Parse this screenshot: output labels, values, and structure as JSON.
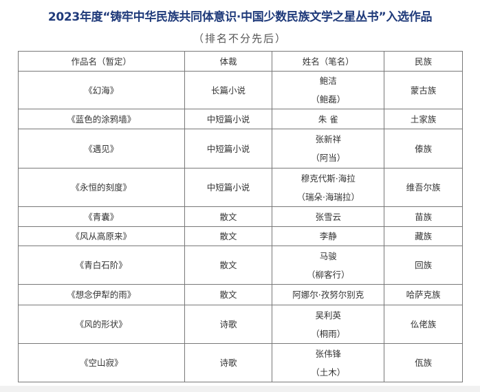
{
  "title": "2023年度“铸牢中华民族共同体意识·中国少数民族文学之星丛书”入选作品",
  "subtitle": "（排名不分先后）",
  "table": {
    "headers": [
      "作品名（暂定）",
      "体裁",
      "姓名（笔名）",
      "民族"
    ],
    "rows": [
      {
        "work": "《幻海》",
        "genre": "长篇小说",
        "name": "鲍洁",
        "pen": "（鲍磊）",
        "ethnicity": "蒙古族"
      },
      {
        "work": "《蓝色的涂鸦墙》",
        "genre": "中短篇小说",
        "name": "朱 雀",
        "pen": "",
        "ethnicity": "土家族"
      },
      {
        "work": "《遇见》",
        "genre": "中短篇小说",
        "name": "张新祥",
        "pen": "（阿当）",
        "ethnicity": "傣族"
      },
      {
        "work": "《永恒的刻度》",
        "genre": "中短篇小说",
        "name": "穆克代斯·海拉",
        "pen": "（瑞朵·海瑞拉）",
        "ethnicity": "维吾尔族"
      },
      {
        "work": "《青囊》",
        "genre": "散文",
        "name": "张雪云",
        "pen": "",
        "ethnicity": "苗族"
      },
      {
        "work": "《风从高原来》",
        "genre": "散文",
        "name": "李静",
        "pen": "",
        "ethnicity": "藏族"
      },
      {
        "work": "《青白石阶》",
        "genre": "散文",
        "name": "马骏",
        "pen": "（柳客行）",
        "ethnicity": "回族"
      },
      {
        "work": "《想念伊犁的雨》",
        "genre": "散文",
        "name": "阿娜尔·孜努尔别克",
        "pen": "",
        "ethnicity": "哈萨克族"
      },
      {
        "work": "《风的形状》",
        "genre": "诗歌",
        "name": "吴利英",
        "pen": "（桐雨）",
        "ethnicity": "仫佬族"
      },
      {
        "work": "《空山寂》",
        "genre": "诗歌",
        "name": "张伟锋",
        "pen": "（土木）",
        "ethnicity": "佤族"
      }
    ]
  }
}
